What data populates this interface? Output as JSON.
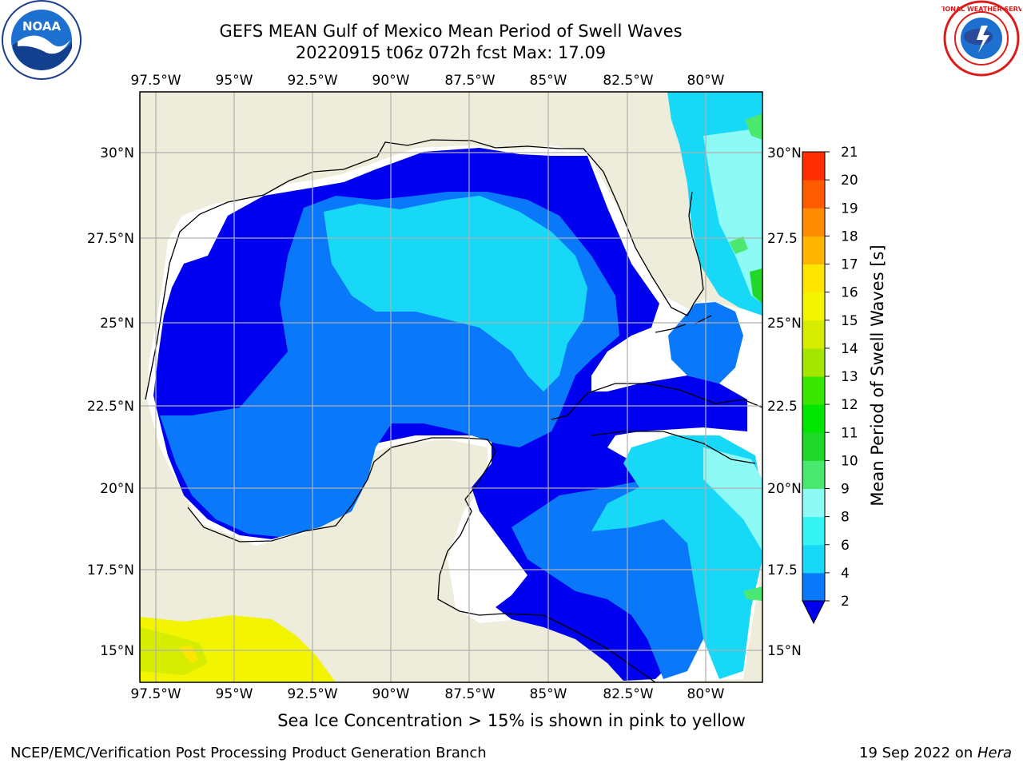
{
  "title": {
    "line1": "GEFS MEAN Gulf of Mexico Mean Period of Swell Waves",
    "line2": "20220915 t06z 072h fcst   Max: 17.09"
  },
  "map": {
    "lon_ticks": [
      "97.5°W",
      "95°W",
      "92.5°W",
      "90°W",
      "87.5°W",
      "85°W",
      "82.5°W",
      "80°W"
    ],
    "lat_ticks_left": [
      "30°N",
      "27.5°N",
      "25°N",
      "22.5°N",
      "20°N",
      "17.5°N",
      "15°N"
    ],
    "lat_ticks_right": [
      "30°N",
      "27.5",
      "25°N",
      "22.5",
      "20°N",
      "17.5",
      "15°N"
    ],
    "land_color": "#eeecda",
    "missing_color": "#ffffff"
  },
  "colorbar": {
    "label": "Mean Period of Swell Waves [s]",
    "ticks": [
      "2",
      "4",
      "6",
      "8",
      "9",
      "10",
      "11",
      "12",
      "13",
      "14",
      "15",
      "16",
      "17",
      "18",
      "19",
      "20",
      "21"
    ],
    "colors": [
      "#0000f0",
      "#0a78fa",
      "#18d8f8",
      "#36f4f4",
      "#8dfaf6",
      "#4ae86e",
      "#20d82a",
      "#00e600",
      "#38e600",
      "#a4e600",
      "#d6ec00",
      "#f2f400",
      "#fee600",
      "#ffb400",
      "#ff8c00",
      "#ff5a00",
      "#ff2d00",
      "#ff0000"
    ]
  },
  "subtitle": "Sea Ice Concentration > 15% is shown in pink to yellow",
  "footer": {
    "left": "NCEP/EMC/Verification Post Processing Product Generation Branch",
    "right_prefix": "19 Sep 2022 on ",
    "right_host": "Hera"
  },
  "logos": {
    "left": "noaa-logo",
    "right": "nws-logo",
    "nws_text": "NATIONAL WEATHER SERVICE"
  }
}
